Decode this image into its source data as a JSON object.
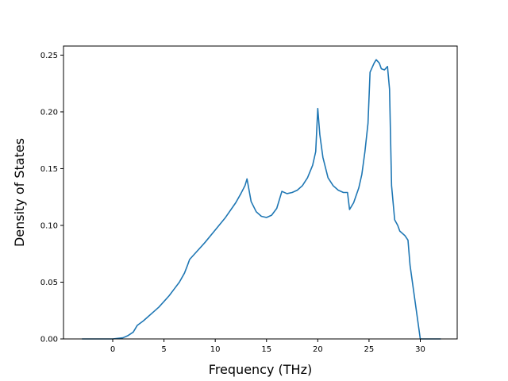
{
  "chart_data": {
    "type": "line",
    "title": "",
    "xlabel": "Frequency (THz)",
    "ylabel": "Density of States",
    "xlim": [
      -4.8,
      33.6
    ],
    "ylim": [
      0.0,
      0.258
    ],
    "xticks": [
      0,
      5,
      10,
      15,
      20,
      25,
      30
    ],
    "xtick_labels": [
      "0",
      "5",
      "10",
      "15",
      "20",
      "25",
      "30"
    ],
    "yticks": [
      0.0,
      0.05,
      0.1,
      0.15,
      0.2,
      0.25
    ],
    "ytick_labels": [
      "0.00",
      "0.05",
      "0.10",
      "0.15",
      "0.20",
      "0.25"
    ],
    "grid": false,
    "line_color": "#1f77b4",
    "series": [
      {
        "x": [
          -3.0,
          0.0,
          1.0,
          1.5,
          2.0,
          2.4,
          2.7,
          3.0,
          3.5,
          4.0,
          4.5,
          5.0,
          5.5,
          6.0,
          6.5,
          7.0,
          7.3,
          7.5,
          8.0,
          9.0,
          10.0,
          11.0,
          12.0,
          12.5,
          12.9,
          13.1,
          13.5,
          14.0,
          14.5,
          15.0,
          15.5,
          16.0,
          16.5,
          17.0,
          17.5,
          18.0,
          18.5,
          19.0,
          19.5,
          19.8,
          20.0,
          20.2,
          20.5,
          21.0,
          21.5,
          22.0,
          22.5,
          22.9,
          23.1,
          23.5,
          24.0,
          24.3,
          24.6,
          24.9,
          25.1,
          25.5,
          25.7,
          26.0,
          26.2,
          26.5,
          26.8,
          27.0,
          27.2,
          27.5,
          27.8,
          28.0,
          28.5,
          28.8,
          29.0,
          30.0,
          32.0
        ],
        "y": [
          0.0,
          0.0,
          0.001,
          0.003,
          0.006,
          0.012,
          0.014,
          0.016,
          0.02,
          0.024,
          0.028,
          0.033,
          0.038,
          0.044,
          0.05,
          0.058,
          0.065,
          0.07,
          0.075,
          0.085,
          0.096,
          0.107,
          0.12,
          0.128,
          0.135,
          0.141,
          0.121,
          0.112,
          0.108,
          0.107,
          0.109,
          0.115,
          0.13,
          0.128,
          0.129,
          0.131,
          0.135,
          0.142,
          0.153,
          0.165,
          0.203,
          0.18,
          0.16,
          0.142,
          0.135,
          0.131,
          0.129,
          0.129,
          0.114,
          0.12,
          0.133,
          0.145,
          0.165,
          0.19,
          0.235,
          0.243,
          0.246,
          0.243,
          0.238,
          0.237,
          0.24,
          0.22,
          0.135,
          0.105,
          0.1,
          0.095,
          0.091,
          0.087,
          0.065,
          0.0,
          0.0
        ]
      }
    ]
  }
}
